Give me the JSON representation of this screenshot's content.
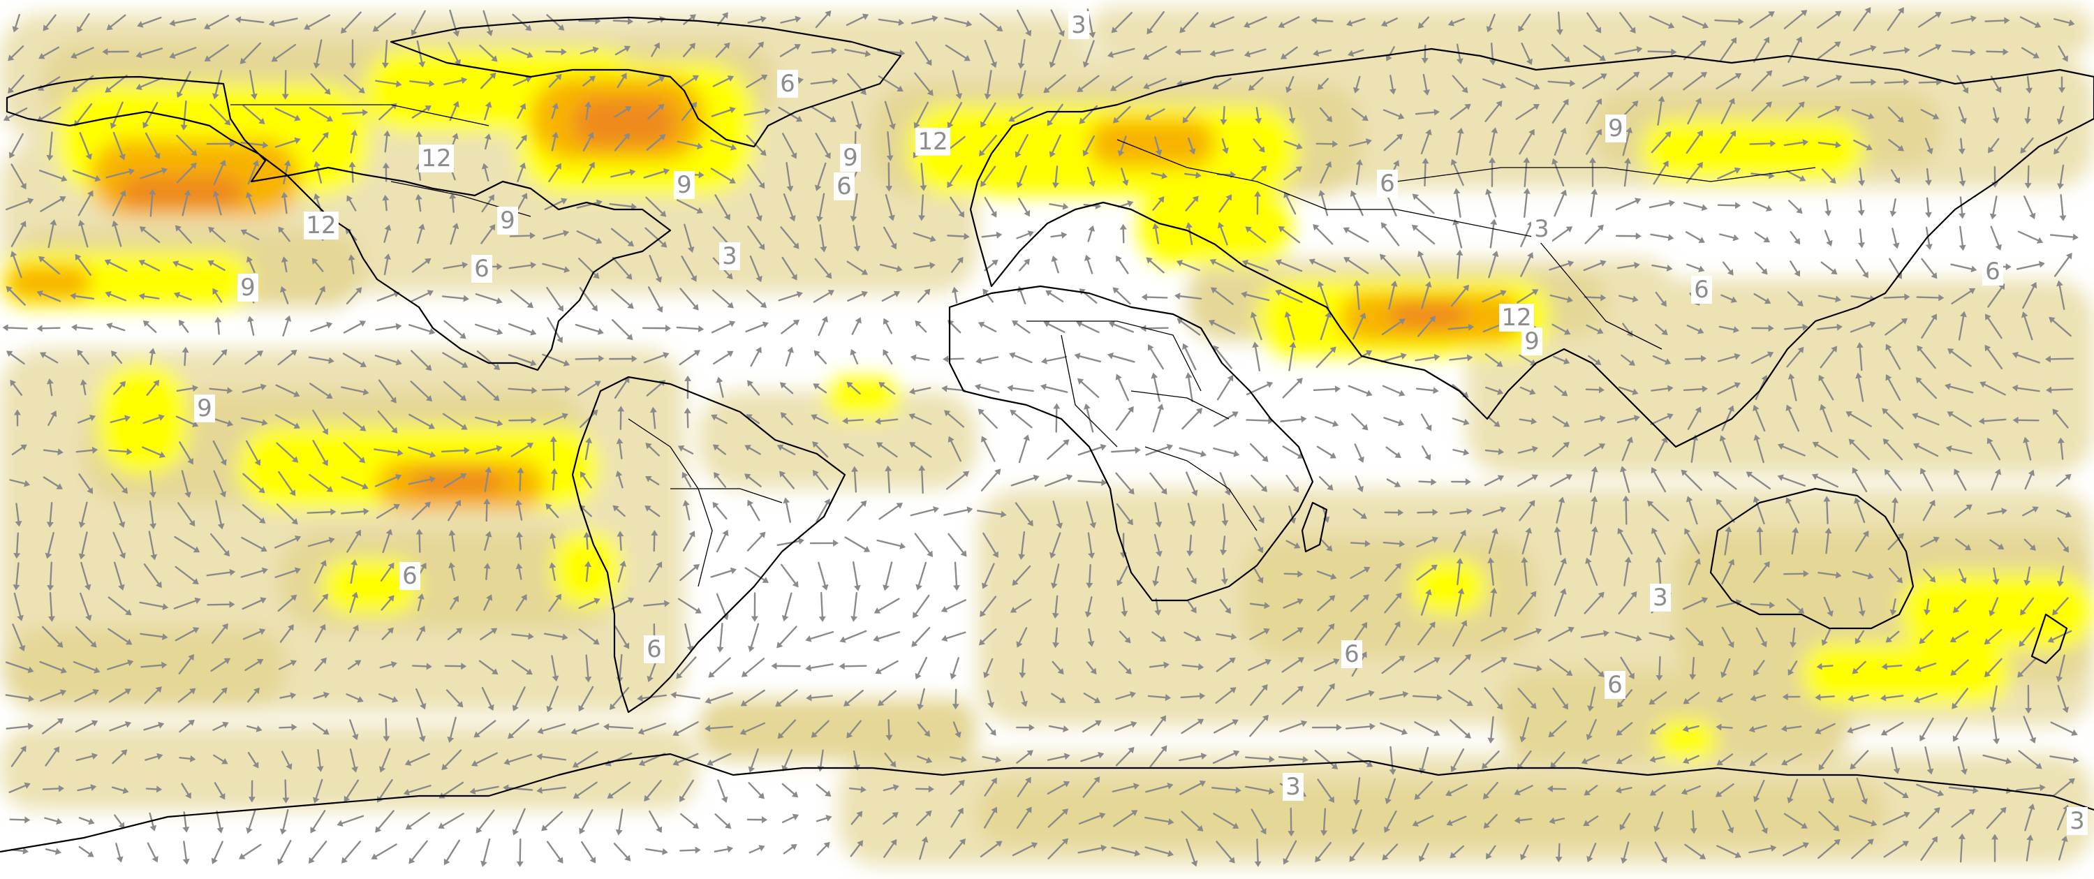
{
  "colors": {
    "background": "#ffffff",
    "level_3": "#ece2b4",
    "level_6": "#e5d796",
    "level_9": "#ffff00",
    "level_12": "#f8b400",
    "level_15": "#ef8a1a",
    "coastline": "#000000",
    "vector_arrows": "#8a8a8a",
    "contour_label_text": "#8c8c8c"
  },
  "contour_labels": [
    {
      "id": "lbl-3-a",
      "text": "3"
    },
    {
      "id": "lbl-6-a",
      "text": "6"
    },
    {
      "id": "lbl-12-a",
      "text": "12"
    },
    {
      "id": "lbl-9-a",
      "text": "9"
    },
    {
      "id": "lbl-9-b",
      "text": "9"
    },
    {
      "id": "lbl-6-b",
      "text": "6"
    },
    {
      "id": "lbl-12-b",
      "text": "12"
    },
    {
      "id": "lbl-9-c",
      "text": "9"
    },
    {
      "id": "lbl-12-c",
      "text": "12"
    },
    {
      "id": "lbl-9-d",
      "text": "9"
    },
    {
      "id": "lbl-6-c",
      "text": "6"
    },
    {
      "id": "lbl-3-b",
      "text": "3"
    },
    {
      "id": "lbl-9-e",
      "text": "9"
    },
    {
      "id": "lbl-6-d",
      "text": "6"
    },
    {
      "id": "lbl-3-c",
      "text": "3"
    },
    {
      "id": "lbl-6-e",
      "text": "6"
    },
    {
      "id": "lbl-6-f",
      "text": "6"
    },
    {
      "id": "lbl-12-d",
      "text": "12"
    },
    {
      "id": "lbl-9-f",
      "text": "9"
    },
    {
      "id": "lbl-9-g",
      "text": "9"
    },
    {
      "id": "lbl-6-g",
      "text": "6"
    },
    {
      "id": "lbl-3-d",
      "text": "3"
    },
    {
      "id": "lbl-6-h",
      "text": "6"
    },
    {
      "id": "lbl-6-i",
      "text": "6"
    },
    {
      "id": "lbl-3-e",
      "text": "3"
    },
    {
      "id": "lbl-6-j",
      "text": "6"
    },
    {
      "id": "lbl-3-f",
      "text": "3"
    }
  ]
}
